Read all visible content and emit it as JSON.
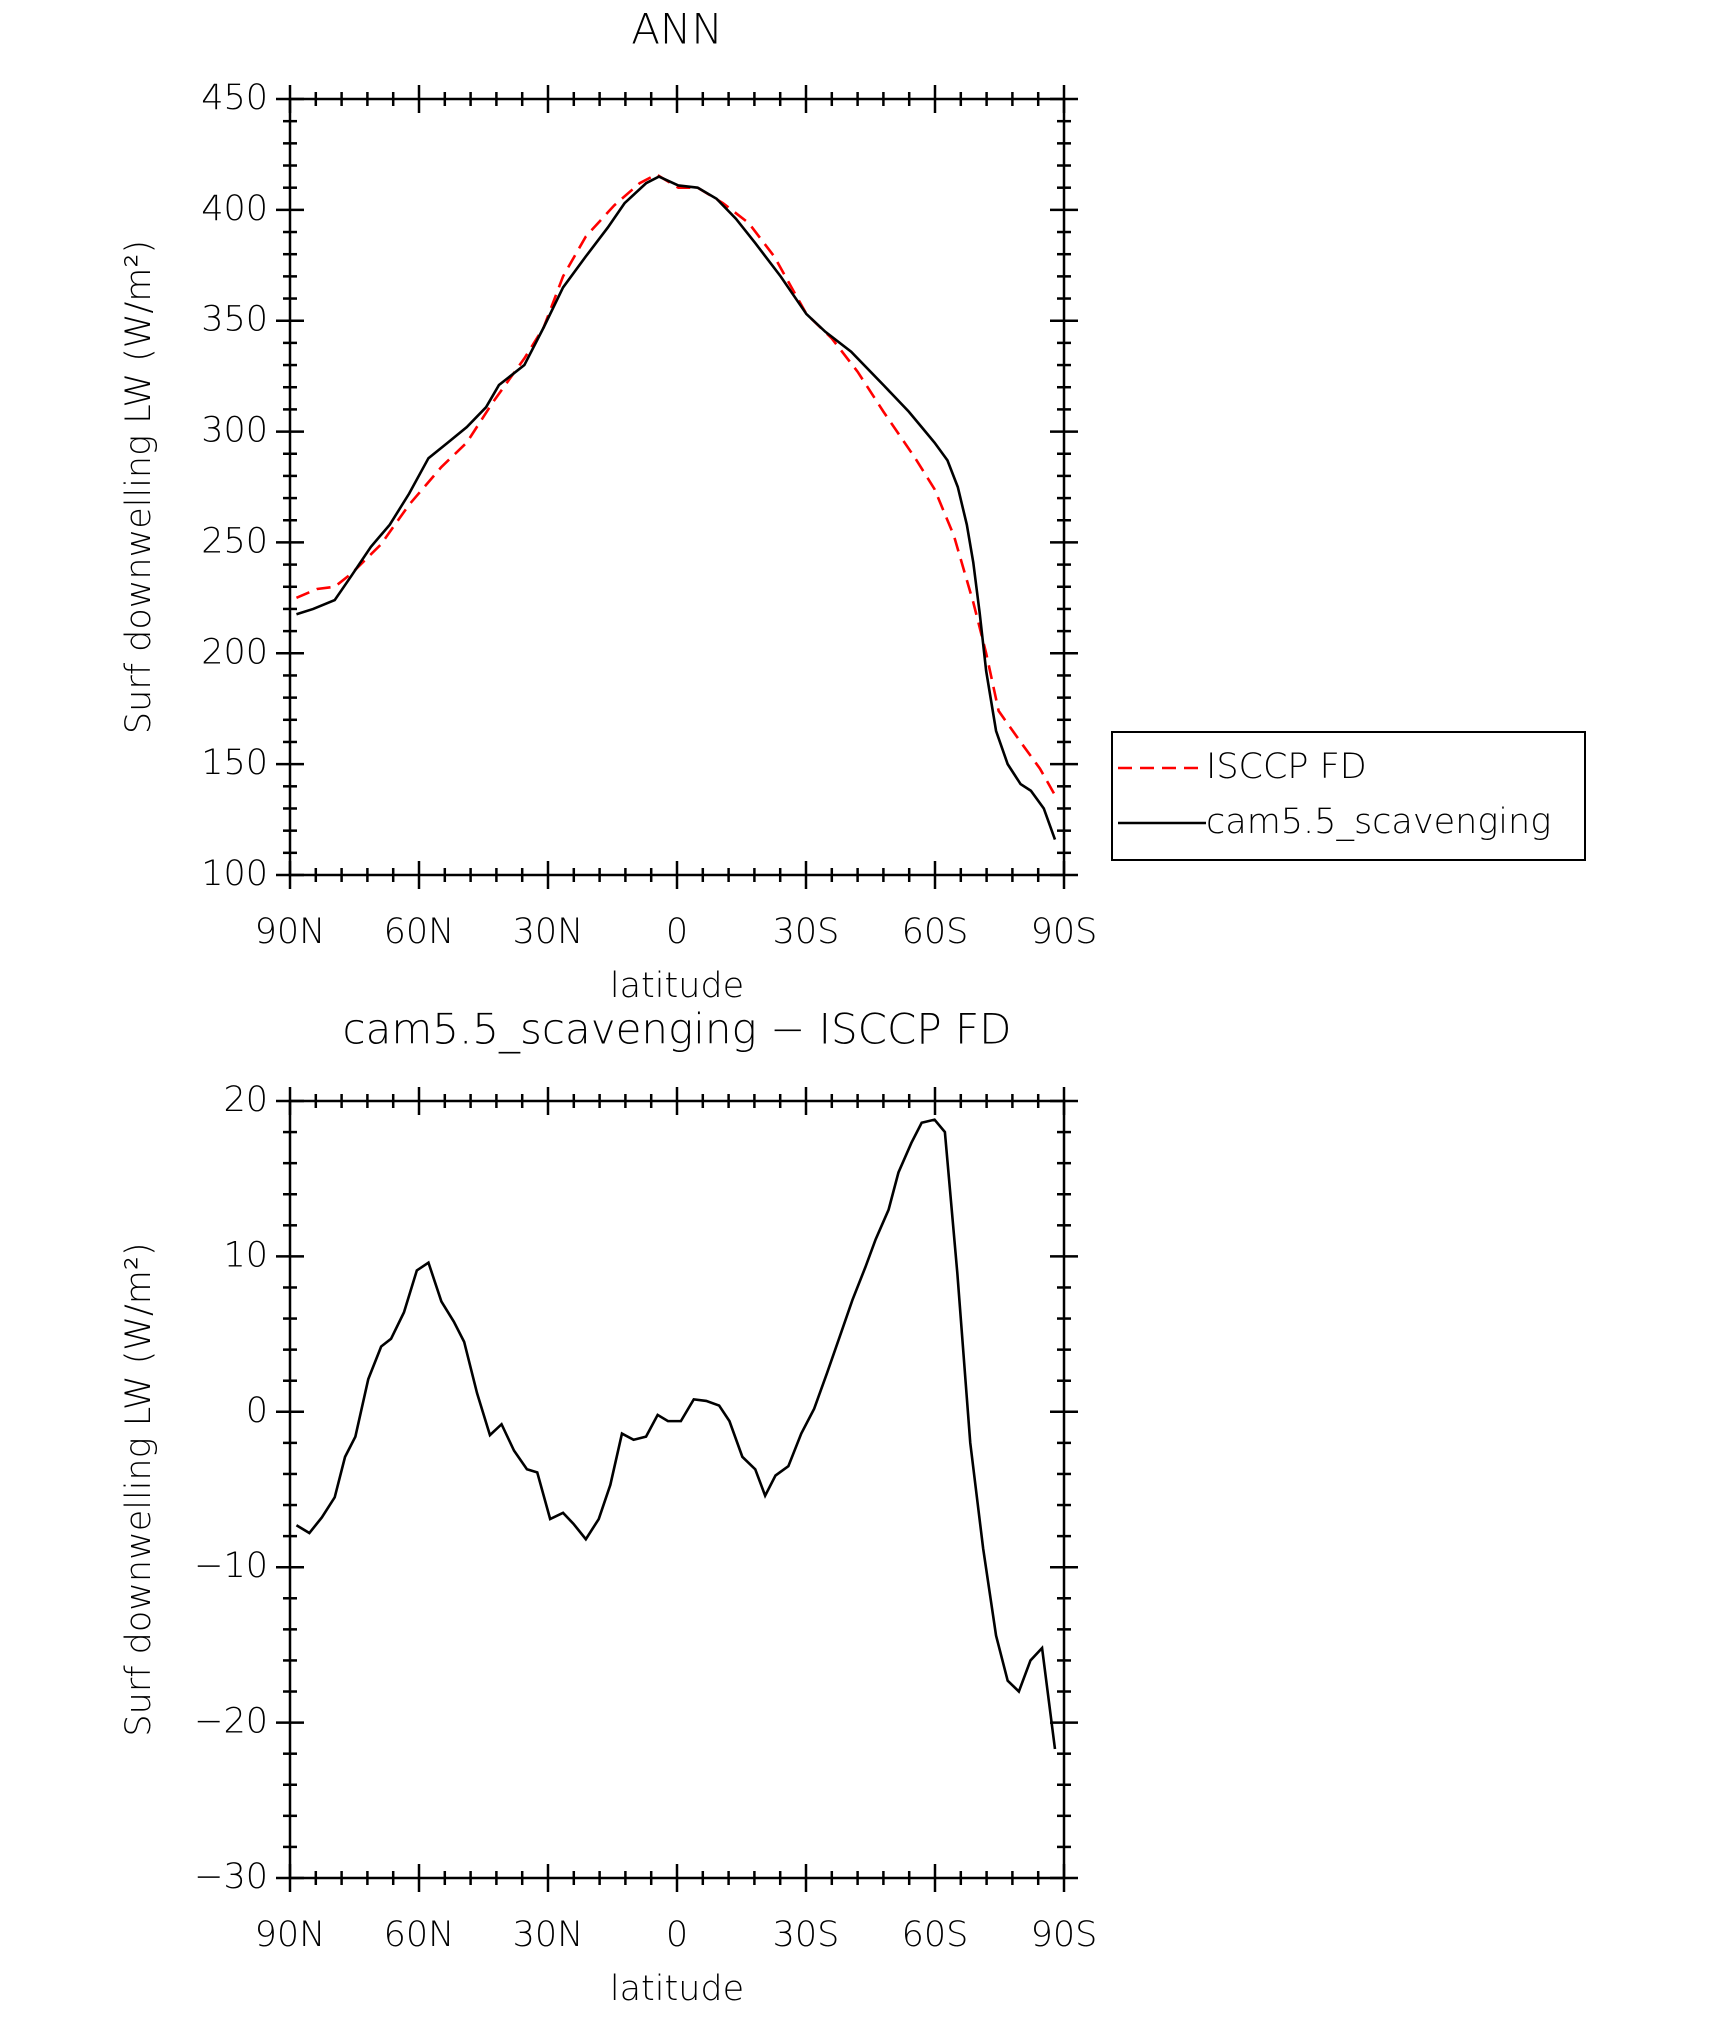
{
  "chart_data": [
    {
      "type": "line",
      "title": "ANN",
      "xlabel": "latitude",
      "ylabel": "Surf downwelling LW (W/m²)",
      "xlim": [
        90,
        -90
      ],
      "xticks": [
        {
          "value": 90,
          "label": "90N"
        },
        {
          "value": 60,
          "label": "60N"
        },
        {
          "value": 30,
          "label": "30N"
        },
        0,
        {
          "value": -30,
          "label": "30S"
        },
        {
          "value": -60,
          "label": "60S"
        },
        {
          "value": -90,
          "label": "90S"
        }
      ],
      "ylim": [
        100,
        450
      ],
      "yticks": [
        100,
        150,
        200,
        250,
        300,
        350,
        400,
        450
      ],
      "legend": "outside-right",
      "series": [
        {
          "name": "ISCCP FD",
          "color": "#ff0000",
          "dashed": true,
          "x": [
            88.5,
            83.7,
            79.6,
            75.7,
            68.9,
            62.3,
            54.8,
            48.9,
            42.9,
            35.5,
            31.0,
            26.5,
            21.2,
            14.6,
            8.7,
            4.8,
            -0.3,
            -4.8,
            -10.7,
            -16.7,
            -22.6,
            -30.1,
            -36,
            -42,
            -48,
            -55.4,
            -59.9,
            -64.4,
            -68.9,
            -71.9,
            -74.8,
            -79.9,
            -84.4,
            -87.9
          ],
          "values": [
            225,
            229,
            230,
            236,
            249,
            267,
            284,
            295,
            313,
            333,
            347,
            370,
            388,
            402,
            412,
            416,
            410,
            410,
            403,
            394,
            379,
            353,
            342,
            327,
            309,
            288,
            274,
            253,
            223,
            200,
            174,
            160,
            148,
            136
          ]
        },
        {
          "name": "cam5.5_scavenging",
          "color": "#000000",
          "dashed": false,
          "x": [
            88.5,
            84.6,
            79.6,
            75.7,
            71.2,
            66.8,
            62.3,
            57.8,
            53.3,
            48.9,
            44.4,
            41.4,
            35.5,
            31.0,
            26.5,
            21.2,
            16.1,
            12.2,
            7.2,
            4.2,
            -0.3,
            -4.8,
            -9.2,
            -13.7,
            -18.2,
            -24.1,
            -30.1,
            -34.5,
            -40.5,
            -48,
            -53.9,
            -56.9,
            -59.9,
            -62.9,
            -65.3,
            -67.4,
            -68.9,
            -70.4,
            -71.9,
            -74.2,
            -76.9,
            -79.9,
            -82.3,
            -85.3,
            -87.9
          ],
          "values": [
            217.6,
            220,
            224,
            235,
            248,
            258,
            272,
            288,
            295,
            302,
            311,
            321,
            330,
            347,
            365,
            379,
            392,
            403,
            412,
            415,
            411,
            410,
            405,
            396,
            385,
            370,
            353,
            345,
            336,
            321,
            309,
            302,
            295,
            287,
            275,
            258,
            241,
            218,
            192,
            165,
            150,
            141,
            138,
            130,
            116
          ]
        }
      ]
    },
    {
      "type": "line",
      "title": "cam5.5_scavenging − ISCCP FD",
      "xlabel": "latitude",
      "ylabel": "Surf downwelling LW (W/m²)",
      "xlim": [
        90,
        -90
      ],
      "xticks": [
        {
          "value": 90,
          "label": "90N"
        },
        {
          "value": 60,
          "label": "60N"
        },
        {
          "value": 30,
          "label": "30N"
        },
        0,
        {
          "value": -30,
          "label": "30S"
        },
        {
          "value": -60,
          "label": "60S"
        },
        {
          "value": -90,
          "label": "90S"
        }
      ],
      "ylim": [
        -30,
        20
      ],
      "yticks": [
        {
          "value": -30,
          "label": "−30"
        },
        {
          "value": -20,
          "label": "−20"
        },
        {
          "value": -10,
          "label": "−10"
        },
        0,
        10,
        20
      ],
      "color": "#000000",
      "x": [
        88.5,
        85.5,
        82.6,
        79.6,
        77.2,
        74.8,
        71.8,
        68.8,
        66.5,
        63.5,
        60.5,
        57.8,
        54.8,
        51.9,
        49.5,
        46.5,
        43.5,
        40.8,
        37.9,
        34.9,
        32.5,
        29.5,
        26.5,
        24.1,
        21.2,
        18.2,
        15.5,
        12.8,
        10.1,
        7.2,
        4.5,
        2.1,
        -0.9,
        -3.9,
        -6.8,
        -9.8,
        -12.2,
        -15.2,
        -18.2,
        -20.5,
        -22.9,
        -25.9,
        -28.9,
        -31.9,
        -34.9,
        -37.8,
        -40.8,
        -43.8,
        -46.2,
        -49.2,
        -51.5,
        -54.5,
        -56.9,
        -59.9,
        -62.3,
        -65.2,
        -68.2,
        -71.2,
        -74.2,
        -76.9,
        -79.5,
        -82.2,
        -84.9,
        -87.9
      ],
      "values": [
        -7.3,
        -7.8,
        -6.8,
        -5.5,
        -2.9,
        -1.6,
        2.1,
        4.2,
        4.7,
        6.4,
        9.1,
        9.6,
        7.1,
        5.8,
        4.5,
        1.2,
        -1.5,
        -0.8,
        -2.5,
        -3.7,
        -3.9,
        -6.9,
        -6.5,
        -7.2,
        -8.2,
        -6.9,
        -4.7,
        -1.4,
        -1.8,
        -1.6,
        -0.2,
        -0.6,
        -0.6,
        0.8,
        0.7,
        0.4,
        -0.6,
        -2.9,
        -3.7,
        -5.4,
        -4.1,
        -3.5,
        -1.4,
        0.2,
        2.5,
        4.8,
        7.2,
        9.3,
        11.1,
        13.0,
        15.4,
        17.3,
        18.6,
        18.8,
        18.0,
        8.9,
        -2.0,
        -8.8,
        -14.4,
        -17.3,
        -18.0,
        -16.0,
        -15.2,
        -21.7
      ]
    }
  ]
}
